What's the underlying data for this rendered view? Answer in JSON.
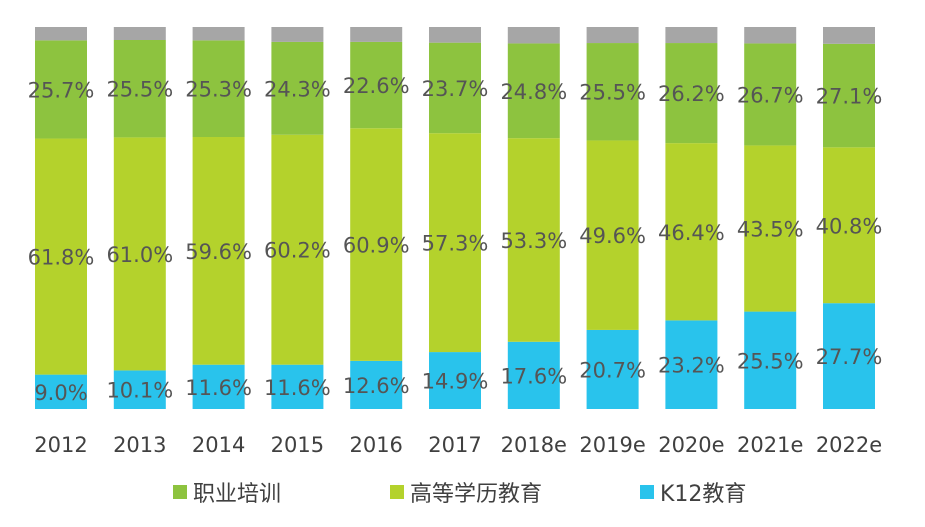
{
  "chart_data": {
    "type": "bar",
    "stacked": true,
    "percent_stacked": true,
    "ylim": [
      0,
      100
    ],
    "grid": false,
    "legend_position": "bottom",
    "categories": [
      "2012",
      "2013",
      "2014",
      "2015",
      "2016",
      "2017",
      "2018e",
      "2019e",
      "2020e",
      "2021e",
      "2022e"
    ],
    "series": [
      {
        "name": "K12教育",
        "color": "#29C3EC",
        "values": [
          9.0,
          10.1,
          11.6,
          11.6,
          12.6,
          14.9,
          17.6,
          20.7,
          23.2,
          25.5,
          27.7
        ],
        "labels": [
          "9.0%",
          "10.1%",
          "11.6%",
          "11.6%",
          "12.6%",
          "14.9%",
          "17.6%",
          "20.7%",
          "23.2%",
          "25.5%",
          "27.7%"
        ]
      },
      {
        "name": "高等学历教育",
        "color": "#B4D22C",
        "values": [
          61.8,
          61.0,
          59.6,
          60.2,
          60.9,
          57.3,
          53.3,
          49.6,
          46.4,
          43.5,
          40.8
        ],
        "labels": [
          "61.8%",
          "61.0%",
          "59.6%",
          "60.2%",
          "60.9%",
          "57.3%",
          "53.3%",
          "49.6%",
          "46.4%",
          "43.5%",
          "40.8%"
        ]
      },
      {
        "name": "职业培训",
        "color": "#8DC33F",
        "values": [
          25.7,
          25.5,
          25.3,
          24.3,
          22.6,
          23.7,
          24.8,
          25.5,
          26.2,
          26.7,
          27.1
        ],
        "labels": [
          "25.7%",
          "25.5%",
          "25.3%",
          "24.3%",
          "22.6%",
          "23.7%",
          "24.8%",
          "25.5%",
          "26.2%",
          "26.7%",
          "27.1%"
        ]
      },
      {
        "color": "#A6A6A6",
        "values": [
          3.5,
          3.4,
          3.5,
          3.9,
          3.9,
          4.1,
          4.3,
          4.2,
          4.2,
          4.3,
          4.4
        ]
      }
    ],
    "legend": [
      "职业培训",
      "高等学历教育",
      "K12教育"
    ]
  }
}
